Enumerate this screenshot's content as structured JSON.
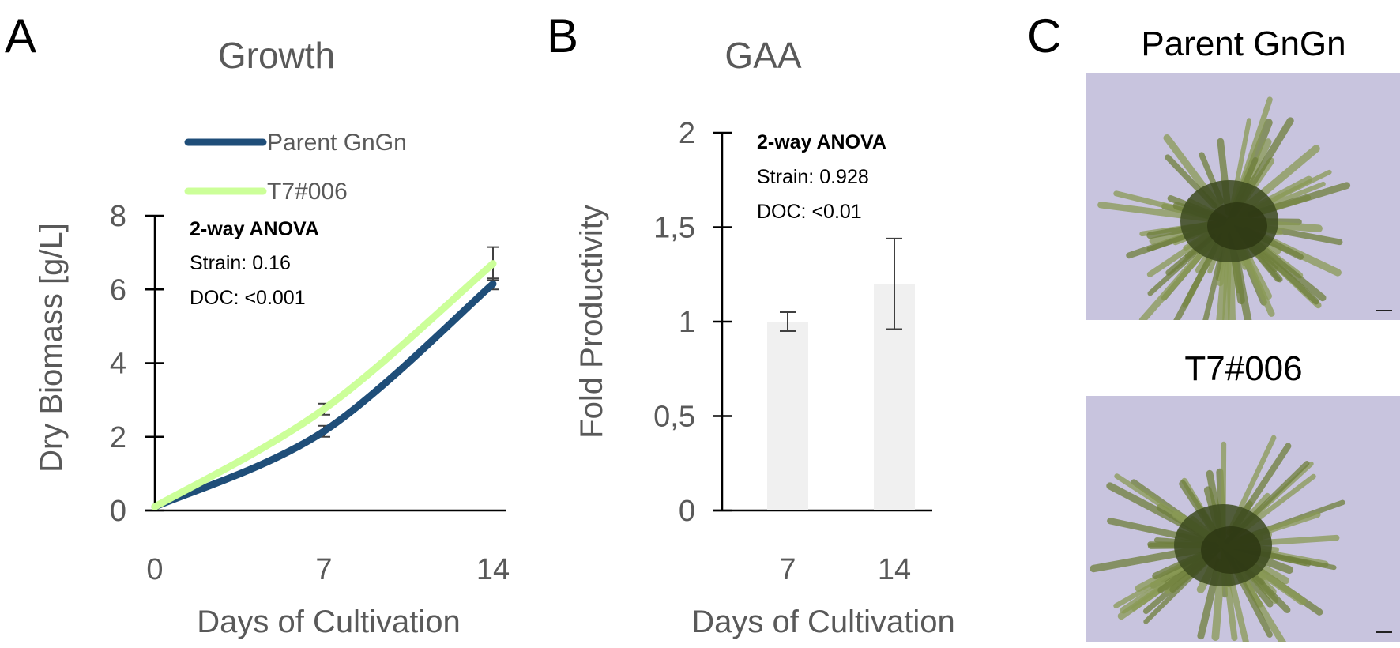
{
  "panels": {
    "a": {
      "letter": "A"
    },
    "b": {
      "letter": "B"
    },
    "c": {
      "letter": "C"
    }
  },
  "chart_data": [
    {
      "type": "line",
      "title": "Growth",
      "xlabel": "Days of Cultivation",
      "ylabel": "Dry Biomass [g/L]",
      "x": [
        0,
        7,
        14
      ],
      "xticks": [
        "0",
        "7",
        "14"
      ],
      "ylim": [
        0,
        8
      ],
      "yticks": [
        "0",
        "2",
        "4",
        "6",
        "8"
      ],
      "legend_position": "top",
      "series": [
        {
          "name": "Parent GnGn",
          "color": "#1f4e79",
          "values": [
            0.1,
            2.15,
            6.15
          ],
          "errors": [
            0,
            0.15,
            0.15
          ]
        },
        {
          "name": "T7#006",
          "color": "#ccff99",
          "values": [
            0.1,
            2.75,
            6.7
          ],
          "errors": [
            0,
            0.15,
            0.45
          ]
        }
      ],
      "annotation": {
        "heading": "2-way ANOVA",
        "lines": [
          "Strain: 0.16",
          "DOC: <0.001"
        ]
      }
    },
    {
      "type": "bar",
      "title": "GAA",
      "xlabel": "Days of Cultivation",
      "ylabel": "Fold Productivity",
      "categories": [
        "7",
        "14"
      ],
      "values": [
        1.0,
        1.2
      ],
      "errors": [
        0.05,
        0.24
      ],
      "bar_color": "#f0f0f0",
      "ylim": [
        0,
        2
      ],
      "yticks": [
        "0",
        "0,5",
        "1",
        "1,5",
        "2"
      ],
      "annotation": {
        "heading": "2-way ANOVA",
        "lines": [
          "Strain: 0.928",
          "DOC: <0.01"
        ]
      }
    }
  ],
  "photos": {
    "top_title": "Parent GnGn",
    "bottom_title": "T7#006"
  },
  "colors": {
    "axis": "#000000",
    "error_bar": "#404040",
    "photo_bg": "#c8c4de",
    "algae_dark": "#3c4a1e",
    "algae_light": "#8a9a55"
  }
}
